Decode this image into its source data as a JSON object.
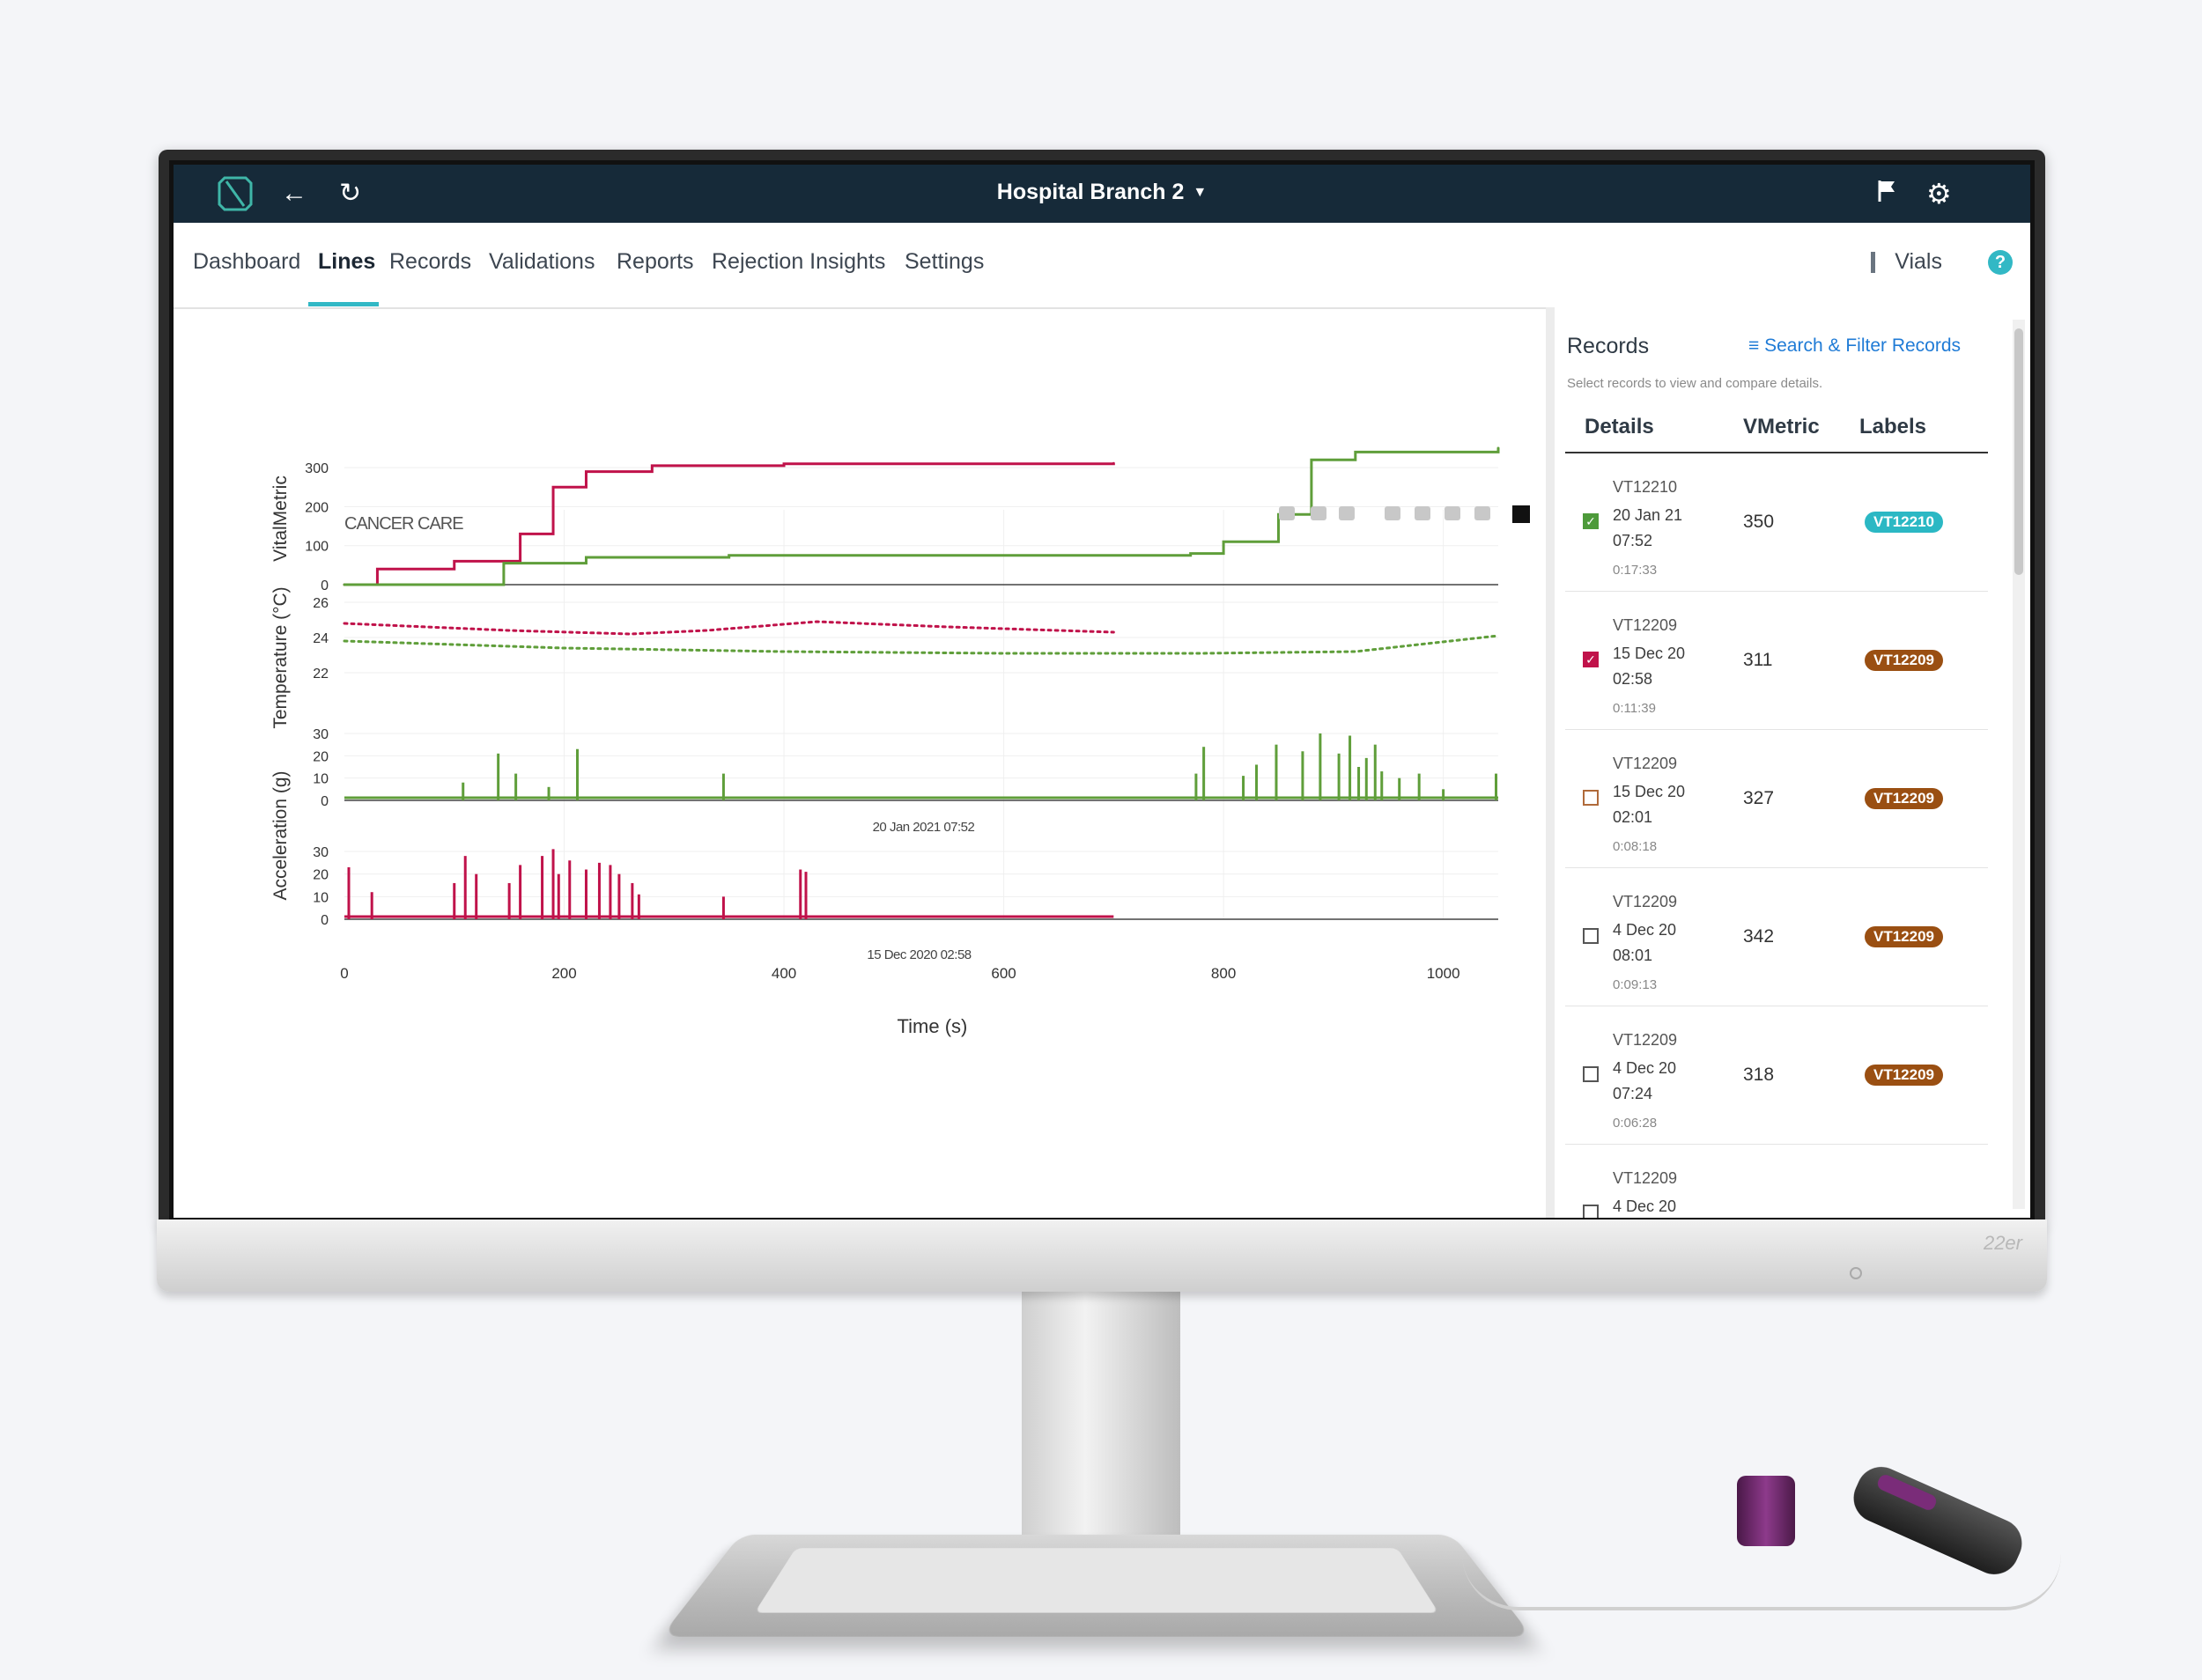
{
  "header": {
    "branch": "Hospital Branch 2"
  },
  "nav": {
    "tabs": [
      "Dashboard",
      "Lines",
      "Records",
      "Validations",
      "Reports",
      "Rejection Insights",
      "Settings"
    ],
    "active": "Lines",
    "vials": "Vials",
    "help": "?"
  },
  "chart": {
    "annotation": "CANCER CARE",
    "ylabel_top": "VitalMetric",
    "ylabel_temp": "Temperature (°C)",
    "ylabel_accel": "Acceleration (g)",
    "xlabel": "Time (s)",
    "ts_green": "20 Jan 2021 07:52",
    "ts_red": "15 Dec 2020 02:58",
    "colors": {
      "red": "#c0124a",
      "green": "#5f9e3a"
    }
  },
  "chart_data": [
    {
      "type": "line",
      "ylabel": "VitalMetric",
      "ylim": [
        0,
        350
      ],
      "yticks": [
        0,
        100,
        200,
        300
      ],
      "xlim": [
        0,
        1050
      ],
      "series": [
        {
          "x": [
            0,
            30,
            100,
            160,
            190,
            220,
            280,
            400,
            700
          ],
          "values": [
            0,
            40,
            60,
            130,
            250,
            290,
            305,
            310,
            311
          ]
        },
        {
          "x": [
            0,
            135,
            145,
            220,
            350,
            770,
            800,
            850,
            880,
            920,
            1050
          ],
          "values": [
            0,
            0,
            55,
            70,
            75,
            80,
            110,
            180,
            320,
            340,
            350
          ]
        }
      ]
    },
    {
      "type": "line",
      "ylabel": "Temperature (°C)",
      "ylim": [
        21.5,
        27
      ],
      "yticks": [
        22,
        24,
        26
      ],
      "xlim": [
        0,
        1050
      ],
      "series": [
        {
          "x": [
            0,
            150,
            260,
            330,
            430,
            550,
            700
          ],
          "values": [
            24.8,
            24.4,
            24.2,
            24.4,
            24.9,
            24.6,
            24.3
          ]
        },
        {
          "x": [
            0,
            200,
            400,
            600,
            780,
            920,
            1050
          ],
          "values": [
            23.8,
            23.4,
            23.2,
            23.1,
            23.1,
            23.2,
            24.1
          ]
        }
      ]
    },
    {
      "type": "bar",
      "ylabel": "Acceleration (g)",
      "ylim": [
        0,
        30
      ],
      "yticks": [
        0,
        10,
        20,
        30
      ],
      "xlim": [
        0,
        1050
      ],
      "x": [
        108,
        140,
        156,
        186,
        212,
        345,
        775,
        782,
        818,
        830,
        848,
        872,
        888,
        905,
        915,
        923,
        930,
        938,
        944,
        960,
        978,
        1000,
        1048
      ],
      "values": [
        8,
        21,
        12,
        6,
        23,
        12,
        12,
        24,
        11,
        16,
        25,
        22,
        30,
        21,
        29,
        15,
        19,
        25,
        13,
        10,
        12,
        5,
        12
      ]
    },
    {
      "type": "bar",
      "ylabel": "Acceleration (g)",
      "ylim": [
        0,
        30
      ],
      "yticks": [
        0,
        10,
        20,
        30
      ],
      "xlim": [
        0,
        1050
      ],
      "xticks": [
        0,
        200,
        400,
        600,
        800,
        1000
      ],
      "xlabel": "Time (s)",
      "x": [
        4,
        25,
        100,
        110,
        120,
        150,
        160,
        180,
        190,
        195,
        205,
        220,
        232,
        242,
        250,
        262,
        268,
        345,
        415,
        420
      ],
      "values": [
        23,
        12,
        16,
        28,
        20,
        16,
        24,
        28,
        31,
        20,
        26,
        22,
        25,
        24,
        20,
        16,
        11,
        10,
        22,
        21
      ]
    }
  ],
  "records": {
    "title": "Records",
    "filter": "Search & Filter Records",
    "subtitle": "Select records to view and compare details.",
    "columns": [
      "Details",
      "VMetric",
      "Labels"
    ],
    "rows": [
      {
        "id": "VT12210",
        "date": "20 Jan 21 07:52",
        "dur": "0:17:33",
        "vm": "350",
        "label": "VT12210",
        "label_color": "#2bb8c4",
        "checked": true,
        "check_color": "#4d9a3a"
      },
      {
        "id": "VT12209",
        "date": "15 Dec 20 02:58",
        "dur": "0:11:39",
        "vm": "311",
        "label": "VT12209",
        "label_color": "#9a4f12",
        "checked": true,
        "check_color": "#c0124a"
      },
      {
        "id": "VT12209",
        "date": "15 Dec 20 02:01",
        "dur": "0:08:18",
        "vm": "327",
        "label": "VT12209",
        "label_color": "#9a4f12",
        "checked": false,
        "check_color": "#b06a3a"
      },
      {
        "id": "VT12209",
        "date": "4 Dec 20 08:01",
        "dur": "0:09:13",
        "vm": "342",
        "label": "VT12209",
        "label_color": "#9a4f12",
        "checked": false,
        "check_color": "#555555"
      },
      {
        "id": "VT12209",
        "date": "4 Dec 20 07:24",
        "dur": "0:06:28",
        "vm": "318",
        "label": "VT12209",
        "label_color": "#9a4f12",
        "checked": false,
        "check_color": "#555555"
      },
      {
        "id": "VT12209",
        "date": "4 Dec 20",
        "dur": "",
        "vm": "",
        "label": "",
        "label_color": "#9a4f12",
        "checked": false,
        "check_color": "#555555"
      }
    ]
  },
  "monitor": {
    "model": "22er"
  }
}
